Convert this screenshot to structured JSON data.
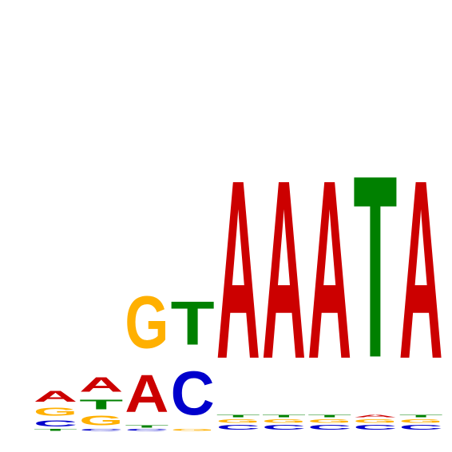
{
  "logo": {
    "type": "sequence-logo",
    "colors": {
      "A": "#cc0000",
      "C": "#0000cc",
      "G": "#ffb000",
      "T": "#008000"
    },
    "full_column_bits": 2.0,
    "columns": [
      [
        {
          "base": "T",
          "bits": 0.02
        },
        {
          "base": "C",
          "bits": 0.07
        },
        {
          "base": "G",
          "bits": 0.09
        },
        {
          "base": "A",
          "bits": 0.12
        }
      ],
      [
        {
          "base": "C",
          "bits": 0.02
        },
        {
          "base": "G",
          "bits": 0.11
        },
        {
          "base": "T",
          "bits": 0.11
        },
        {
          "base": "A",
          "bits": 0.16
        }
      ],
      [
        {
          "base": "C",
          "bits": 0.02
        },
        {
          "base": "T",
          "bits": 0.03
        },
        {
          "base": "A",
          "bits": 0.41
        },
        {
          "base": "G",
          "bits": 0.57
        }
      ],
      [
        {
          "base": "G",
          "bits": 0.02
        },
        {
          "base": "C",
          "bits": 0.48
        },
        {
          "base": "T",
          "bits": 0.48
        }
      ],
      [
        {
          "base": "C",
          "bits": 0.05
        },
        {
          "base": "G",
          "bits": 0.04
        },
        {
          "base": "T",
          "bits": 0.03
        },
        {
          "base": "A",
          "bits": 1.96
        }
      ],
      [
        {
          "base": "C",
          "bits": 0.05
        },
        {
          "base": "G",
          "bits": 0.04
        },
        {
          "base": "T",
          "bits": 0.03
        },
        {
          "base": "A",
          "bits": 1.96
        }
      ],
      [
        {
          "base": "C",
          "bits": 0.05
        },
        {
          "base": "G",
          "bits": 0.04
        },
        {
          "base": "T",
          "bits": 0.03
        },
        {
          "base": "A",
          "bits": 1.96
        }
      ],
      [
        {
          "base": "C",
          "bits": 0.05
        },
        {
          "base": "G",
          "bits": 0.04
        },
        {
          "base": "A",
          "bits": 0.03
        },
        {
          "base": "T",
          "bits": 2.0
        }
      ],
      [
        {
          "base": "C",
          "bits": 0.05
        },
        {
          "base": "G",
          "bits": 0.04
        },
        {
          "base": "T",
          "bits": 0.03
        },
        {
          "base": "A",
          "bits": 1.96
        }
      ]
    ]
  }
}
